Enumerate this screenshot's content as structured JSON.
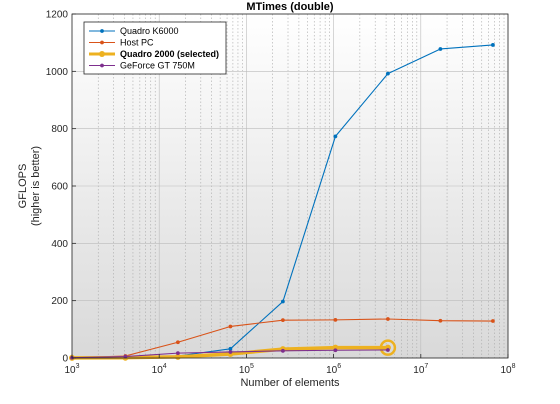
{
  "chart_data": {
    "type": "line",
    "title": "MTimes (double)",
    "xlabel": "Number of elements",
    "ylabel_lines": [
      "GFLOPS",
      "(higher is better)"
    ],
    "x_scale": "log",
    "xlim": [
      1000,
      100000000
    ],
    "ylim": [
      0,
      1200
    ],
    "x_ticks": [
      {
        "value": 1000,
        "base": "10",
        "exp": "3"
      },
      {
        "value": 10000,
        "base": "10",
        "exp": "4"
      },
      {
        "value": 100000,
        "base": "10",
        "exp": "5"
      },
      {
        "value": 1000000,
        "base": "10",
        "exp": "6"
      },
      {
        "value": 10000000,
        "base": "10",
        "exp": "7"
      },
      {
        "value": 100000000,
        "base": "10",
        "exp": "8"
      }
    ],
    "y_ticks": [
      0,
      200,
      400,
      600,
      800,
      1000,
      1200
    ],
    "grid": true,
    "legend_position": "top-left",
    "series": [
      {
        "name": "Quadro K6000",
        "color": "#0072BD",
        "bold": false,
        "x": [
          1000,
          4096,
          16384,
          65536,
          262144,
          1048576,
          4194304,
          16777216,
          67108864
        ],
        "y": [
          0.5,
          2,
          7,
          32,
          197,
          773,
          992,
          1078,
          1092
        ]
      },
      {
        "name": "Host PC",
        "color": "#D95319",
        "bold": false,
        "x": [
          1000,
          4096,
          16384,
          65536,
          262144,
          1048576,
          4194304,
          16777216,
          67108864
        ],
        "y": [
          1,
          7,
          55,
          110,
          132,
          133,
          136,
          130,
          129
        ]
      },
      {
        "name": "Quadro 2000 (selected)",
        "color": "#EDB120",
        "bold": true,
        "x": [
          1000,
          4096,
          16384,
          65536,
          262144,
          1048576,
          4194304
        ],
        "y": [
          0.3,
          1,
          4,
          14,
          31,
          36,
          36
        ]
      },
      {
        "name": "GeForce GT 750M",
        "color": "#7E2F8E",
        "bold": false,
        "x": [
          1000,
          4096,
          16384,
          65536,
          262144,
          1048576,
          4194304
        ],
        "y": [
          1,
          5,
          17,
          21,
          25,
          27,
          28
        ]
      }
    ]
  }
}
